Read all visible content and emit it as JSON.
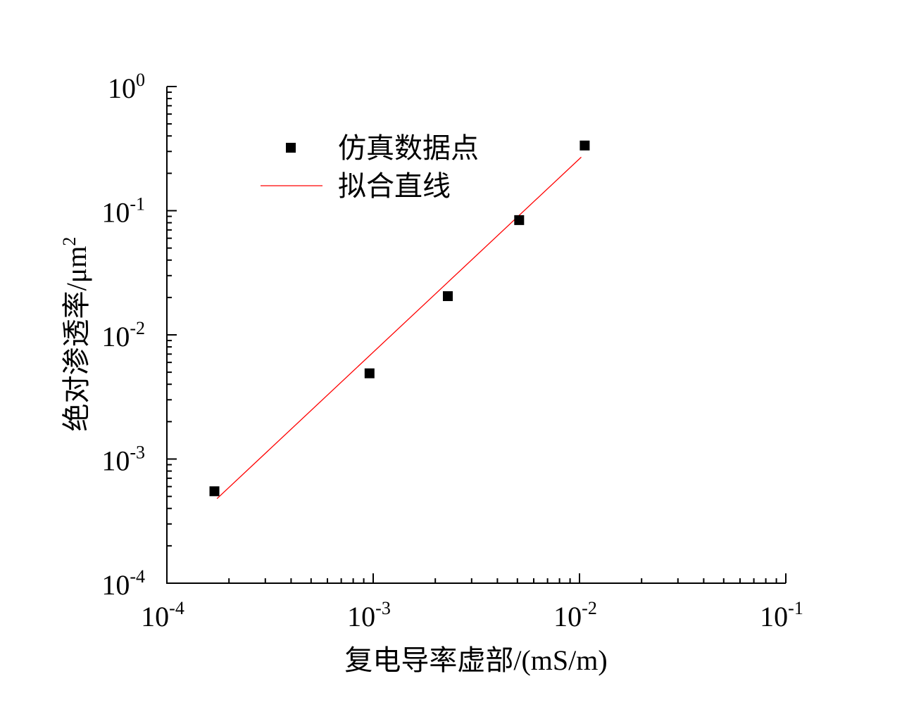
{
  "chart_data": {
    "type": "scatter",
    "title": "",
    "xlabel": "复电导率虚部/(mS/m)",
    "ylabel_main": "绝对渗透率/μm",
    "ylabel_sup": "2",
    "xscale": "log",
    "yscale": "log",
    "xlim": [
      0.0001,
      0.1
    ],
    "ylim": [
      0.0001,
      1
    ],
    "x_ticks": [
      {
        "base": "10",
        "exp": "-4",
        "value": 0.0001
      },
      {
        "base": "10",
        "exp": "-3",
        "value": 0.001
      },
      {
        "base": "10",
        "exp": "-2",
        "value": 0.01
      },
      {
        "base": "10",
        "exp": "-1",
        "value": 0.1
      }
    ],
    "y_ticks": [
      {
        "base": "10",
        "exp": "0",
        "value": 1
      },
      {
        "base": "10",
        "exp": "-1",
        "value": 0.1
      },
      {
        "base": "10",
        "exp": "-2",
        "value": 0.01
      },
      {
        "base": "10",
        "exp": "-3",
        "value": 0.001
      },
      {
        "base": "10",
        "exp": "-4",
        "value": 0.0001
      }
    ],
    "grid": false,
    "legend_position": "top-left",
    "series": [
      {
        "name": "仿真数据点",
        "kind": "scatter",
        "marker": "square",
        "color": "#000000",
        "points": [
          {
            "x": 0.00017,
            "y": 0.00055
          },
          {
            "x": 0.00096,
            "y": 0.0049
          },
          {
            "x": 0.0023,
            "y": 0.0205
          },
          {
            "x": 0.0051,
            "y": 0.084
          },
          {
            "x": 0.0106,
            "y": 0.335
          }
        ]
      },
      {
        "name": "拟合直线",
        "kind": "line",
        "color": "#ff0000",
        "points": [
          {
            "x": 0.000175,
            "y": 0.00048
          },
          {
            "x": 0.0102,
            "y": 0.27
          }
        ]
      }
    ]
  }
}
